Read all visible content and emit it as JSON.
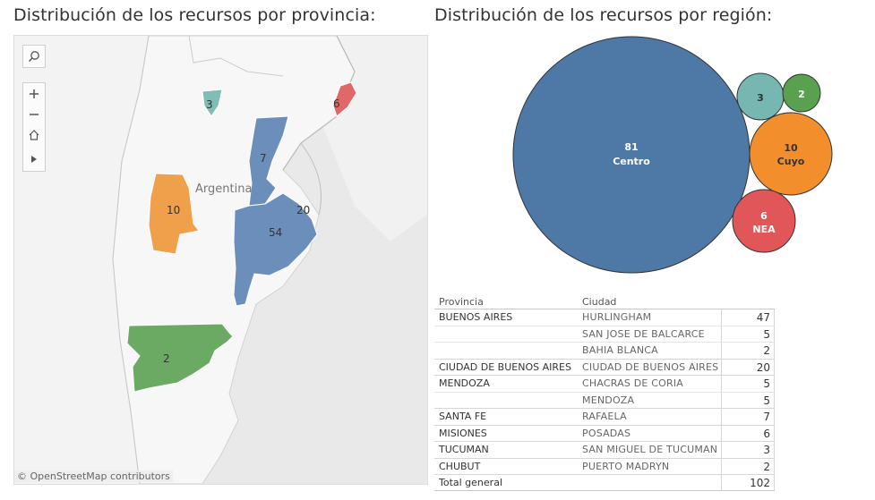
{
  "titles": {
    "map": "Distribución de los recursos por provincia:",
    "bubbles": "Distribución de los recursos por región:"
  },
  "map": {
    "country_label": "Argentina",
    "attribution": "© OpenStreetMap contributors",
    "toolbar": [
      "search-icon",
      "zoom-in-icon",
      "zoom-out-icon",
      "home-icon",
      "play-icon"
    ],
    "provinces": [
      {
        "name": "Buenos Aires",
        "value": "54",
        "color": "#6b8fba"
      },
      {
        "name": "Ciudad de Buenos Aires",
        "value": "20",
        "color": "#6b8fba"
      },
      {
        "name": "Santa Fe",
        "value": "7",
        "color": "#6b8fba"
      },
      {
        "name": "Mendoza",
        "value": "10",
        "color": "#f0a04b"
      },
      {
        "name": "Tucumán",
        "value": "3",
        "color": "#7fbdb6"
      },
      {
        "name": "Misiones",
        "value": "6",
        "color": "#e06868"
      },
      {
        "name": "Chubut",
        "value": "2",
        "color": "#6aaa62"
      }
    ]
  },
  "bubbles": [
    {
      "region": "Centro",
      "value": "81",
      "color": "#4e79a7"
    },
    {
      "region": "Cuyo",
      "value": "10",
      "color": "#f28e2b"
    },
    {
      "region": "NEA",
      "value": "6",
      "color": "#e15759"
    },
    {
      "region": "",
      "value": "3",
      "color": "#76b7b2"
    },
    {
      "region": "",
      "value": "2",
      "color": "#59a14f"
    }
  ],
  "table": {
    "headers": {
      "provincia": "Provincia",
      "ciudad": "Ciudad"
    },
    "groups": [
      {
        "provincia": "BUENOS AIRES",
        "rows": [
          {
            "ciudad": "HURLINGHAM",
            "valor": "47"
          },
          {
            "ciudad": "SAN JOSE DE BALCARCE",
            "valor": "5"
          },
          {
            "ciudad": "BAHIA BLANCA",
            "valor": "2"
          }
        ]
      },
      {
        "provincia": "CIUDAD DE BUENOS AIRES",
        "rows": [
          {
            "ciudad": "CIUDAD DE BUENOS AIRES",
            "valor": "20"
          }
        ]
      },
      {
        "provincia": "MENDOZA",
        "rows": [
          {
            "ciudad": "CHACRAS DE CORIA",
            "valor": "5"
          },
          {
            "ciudad": "MENDOZA",
            "valor": "5"
          }
        ]
      },
      {
        "provincia": "SANTA FE",
        "rows": [
          {
            "ciudad": "RAFAELA",
            "valor": "7"
          }
        ]
      },
      {
        "provincia": "MISIONES",
        "rows": [
          {
            "ciudad": "POSADAS",
            "valor": "6"
          }
        ]
      },
      {
        "provincia": "TUCUMAN",
        "rows": [
          {
            "ciudad": "SAN MIGUEL DE TUCUMAN",
            "valor": "3"
          }
        ]
      },
      {
        "provincia": "CHUBUT",
        "rows": [
          {
            "ciudad": "PUERTO MADRYN",
            "valor": "2"
          }
        ]
      }
    ],
    "total": {
      "label": "Total general",
      "valor": "102"
    }
  }
}
